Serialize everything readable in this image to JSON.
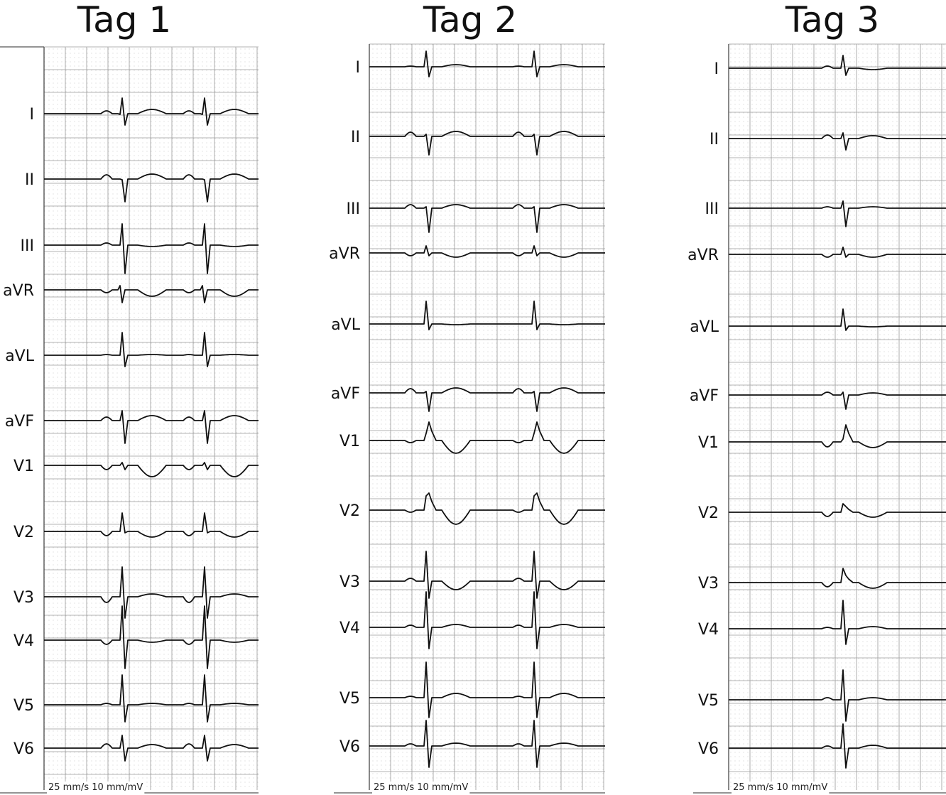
{
  "panels": [
    {
      "title": "Tag 1",
      "footer": "25 mm/s 10 mm/mV",
      "leads": [
        "I",
        "II",
        "III",
        "aVR",
        "aVL",
        "aVF",
        "V1",
        "V2",
        "V3",
        "V4",
        "V5",
        "V6"
      ]
    },
    {
      "title": "Tag 2",
      "footer": "25 mm/s 10 mm/mV",
      "leads": [
        "I",
        "II",
        "III",
        "aVR",
        "aVL",
        "aVF",
        "V1",
        "V2",
        "V3",
        "V4",
        "V5",
        "V6"
      ]
    },
    {
      "title": "Tag 3",
      "footer": "25 mm/s 10 mm/mV",
      "leads": [
        "I",
        "II",
        "III",
        "aVR",
        "aVL",
        "aVF",
        "V1",
        "V2",
        "V3",
        "V4",
        "V5",
        "V6"
      ]
    }
  ],
  "colors": {
    "grid_major": "#9a9a9a",
    "grid_dot": "#b5b5b5",
    "trace": "#111111"
  }
}
